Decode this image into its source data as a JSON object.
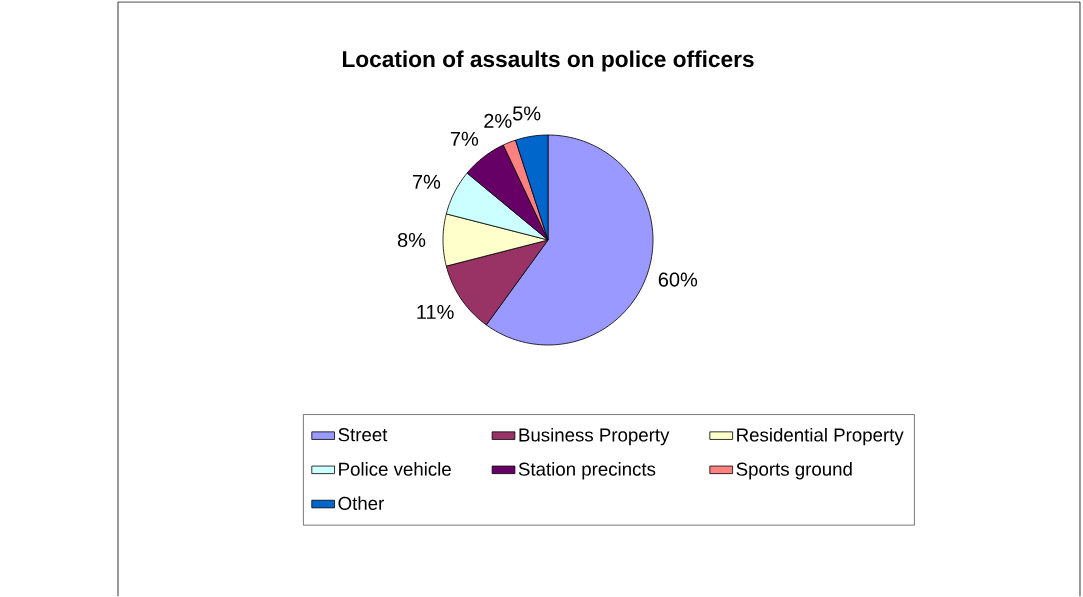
{
  "chart_data": {
    "type": "pie",
    "title": "Location of assaults on police officers",
    "categories": [
      "Street",
      "Business Property",
      "Residential Property",
      "Police vehicle",
      "Station precincts",
      "Sports ground",
      "Other"
    ],
    "values": [
      60,
      11,
      8,
      7,
      7,
      2,
      5
    ],
    "value_labels": [
      "60%",
      "11%",
      "8%",
      "7%",
      "7%",
      "2%",
      "5%"
    ],
    "colors": [
      "#9999ff",
      "#993366",
      "#ffffcc",
      "#ccffff",
      "#660066",
      "#ff8080",
      "#0066cc"
    ],
    "legend": "bottom"
  }
}
